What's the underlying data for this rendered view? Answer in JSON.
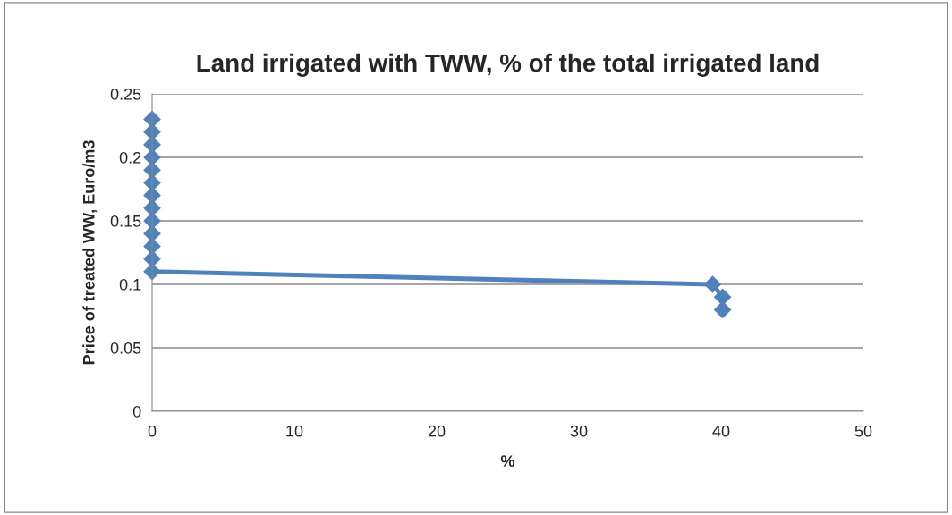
{
  "chart_data": {
    "type": "line",
    "title": "Land irrigated with TWW, % of the total irrigated land",
    "xlabel": "%",
    "ylabel": "Price of treated WW, Euro/m3",
    "series": [
      {
        "color": "#4f81bd",
        "x": [
          0,
          0,
          0,
          0,
          0,
          0,
          0,
          0,
          0,
          0,
          0,
          0,
          0,
          39.4,
          40.1,
          40.1
        ],
        "values": [
          0.23,
          0.22,
          0.21,
          0.2,
          0.19,
          0.18,
          0.17,
          0.16,
          0.15,
          0.14,
          0.13,
          0.12,
          0.11,
          0.1,
          0.09,
          0.08
        ]
      }
    ],
    "xlim": [
      0,
      50
    ],
    "xticks": [
      0,
      10,
      20,
      30,
      40,
      50
    ],
    "ylim": [
      0,
      0.25
    ],
    "yticks": [
      0,
      0.05,
      0.1,
      0.15,
      0.2,
      0.25
    ],
    "grid": "y",
    "marker": "diamond",
    "line_style": "solid"
  }
}
